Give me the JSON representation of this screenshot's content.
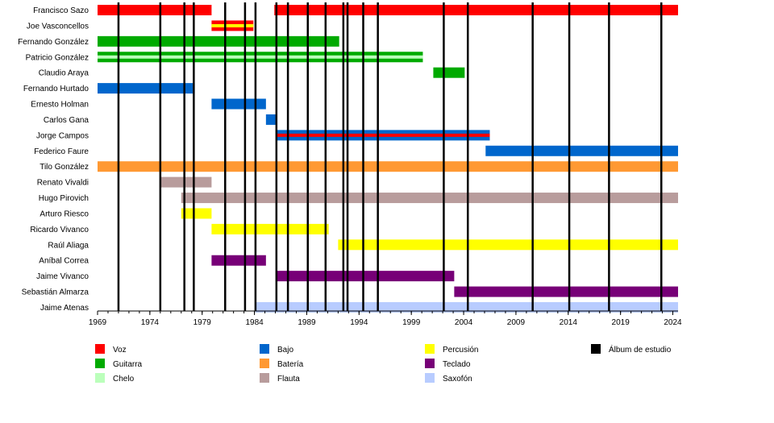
{
  "chart_data": {
    "type": "timeline",
    "xaxis": {
      "min": 1969,
      "max": 2024.5,
      "ticks": [
        1969,
        1974,
        1979,
        1984,
        1989,
        1994,
        1999,
        2004,
        2009,
        2014,
        2019,
        2024
      ]
    },
    "colors": {
      "voz": "#ff0000",
      "guitarra": "#00aa00",
      "chelo": "#bbffbb",
      "bajo": "#0066cc",
      "bateria": "#ff9933",
      "flauta": "#b89c9c",
      "percusion": "#ffff00",
      "teclado": "#770077",
      "saxofon": "#b8ccff",
      "album": "#000000"
    },
    "albums": [
      1971,
      1975,
      1977.3,
      1978.2,
      1981.2,
      1983.1,
      1984.1,
      1986.1,
      1987.2,
      1989.1,
      1990.8,
      1992.5,
      1992.9,
      1994.4,
      1995.8,
      2002.1,
      2004.4,
      2010.6,
      2014.1,
      2017.9,
      2022.9
    ],
    "members": [
      {
        "name": "Francisco Sazo",
        "segments": [
          {
            "from": 1969,
            "to": 1979.9,
            "roles": [
              "voz"
            ]
          },
          {
            "from": 1985.9,
            "to": 2024.5,
            "roles": [
              "voz"
            ]
          }
        ]
      },
      {
        "name": "Joe Vasconcellos",
        "segments": [
          {
            "from": 1979.9,
            "to": 1983.9,
            "roles": [
              "voz",
              "percusion"
            ]
          }
        ]
      },
      {
        "name": "Fernando González",
        "segments": [
          {
            "from": 1969,
            "to": 1992.1,
            "roles": [
              "guitarra"
            ]
          }
        ]
      },
      {
        "name": "Patricio González",
        "segments": [
          {
            "from": 1969,
            "to": 2000.1,
            "roles": [
              "guitarra",
              "chelo"
            ]
          }
        ]
      },
      {
        "name": "Claudio Araya",
        "segments": [
          {
            "from": 2001.1,
            "to": 2004.1,
            "roles": [
              "guitarra"
            ]
          }
        ]
      },
      {
        "name": "Fernando Hurtado",
        "segments": [
          {
            "from": 1969,
            "to": 1978.1,
            "roles": [
              "bajo"
            ]
          }
        ]
      },
      {
        "name": "Ernesto Holman",
        "segments": [
          {
            "from": 1979.9,
            "to": 1985.1,
            "roles": [
              "bajo"
            ]
          }
        ]
      },
      {
        "name": "Carlos Gana",
        "segments": [
          {
            "from": 1985.1,
            "to": 1986.1,
            "roles": [
              "bajo"
            ]
          }
        ]
      },
      {
        "name": "Jorge Campos",
        "segments": [
          {
            "from": 1986.1,
            "to": 2006.5,
            "roles": [
              "bajo",
              "voz"
            ]
          }
        ]
      },
      {
        "name": "Federico Faure",
        "segments": [
          {
            "from": 2006.1,
            "to": 2024.5,
            "roles": [
              "bajo"
            ]
          }
        ]
      },
      {
        "name": "Tilo González",
        "segments": [
          {
            "from": 1969,
            "to": 2024.5,
            "roles": [
              "bateria"
            ]
          }
        ]
      },
      {
        "name": "Renato Vivaldi",
        "segments": [
          {
            "from": 1975,
            "to": 1979.9,
            "roles": [
              "flauta"
            ]
          }
        ]
      },
      {
        "name": "Hugo Pirovich",
        "segments": [
          {
            "from": 1977,
            "to": 2024.5,
            "roles": [
              "flauta"
            ]
          }
        ]
      },
      {
        "name": "Arturo Riesco",
        "segments": [
          {
            "from": 1977,
            "to": 1979.9,
            "roles": [
              "percusion"
            ]
          }
        ]
      },
      {
        "name": "Ricardo Vivanco",
        "segments": [
          {
            "from": 1979.9,
            "to": 1991.1,
            "roles": [
              "percusion"
            ]
          }
        ]
      },
      {
        "name": "Raúl Aliaga",
        "segments": [
          {
            "from": 1992,
            "to": 2024.5,
            "roles": [
              "percusion"
            ]
          }
        ]
      },
      {
        "name": "Aníbal Correa",
        "segments": [
          {
            "from": 1979.9,
            "to": 1985.1,
            "roles": [
              "teclado"
            ]
          }
        ]
      },
      {
        "name": "Jaime Vivanco",
        "segments": [
          {
            "from": 1986.1,
            "to": 2003.1,
            "roles": [
              "teclado"
            ]
          }
        ]
      },
      {
        "name": "Sebastián Almarza",
        "segments": [
          {
            "from": 2003.1,
            "to": 2024.5,
            "roles": [
              "teclado"
            ]
          }
        ]
      },
      {
        "name": "Jaime Atenas",
        "segments": [
          {
            "from": 1984.1,
            "to": 2024.5,
            "roles": [
              "saxofon"
            ]
          }
        ]
      }
    ],
    "legend": [
      {
        "key": "voz",
        "label": "Voz"
      },
      {
        "key": "guitarra",
        "label": "Guitarra"
      },
      {
        "key": "chelo",
        "label": "Chelo"
      },
      {
        "key": "bajo",
        "label": "Bajo"
      },
      {
        "key": "bateria",
        "label": "Batería"
      },
      {
        "key": "flauta",
        "label": "Flauta"
      },
      {
        "key": "percusion",
        "label": "Percusión"
      },
      {
        "key": "teclado",
        "label": "Teclado"
      },
      {
        "key": "saxofon",
        "label": "Saxofón"
      },
      {
        "key": "album",
        "label": "Álbum de estudio"
      }
    ]
  }
}
